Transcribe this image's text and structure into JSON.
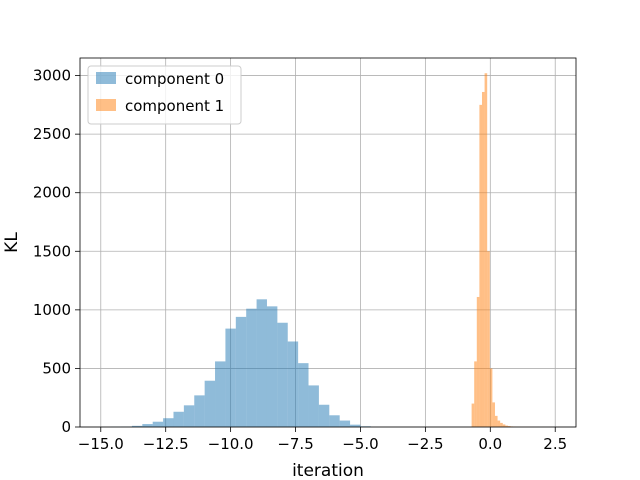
{
  "chart_data": {
    "type": "bar",
    "subtype": "histogram",
    "xlabel": "iteration",
    "ylabel": "KL",
    "xlim": [
      -15.8,
      3.3
    ],
    "ylim": [
      0,
      3150
    ],
    "xticks": [
      -15.0,
      -12.5,
      -10.0,
      -7.5,
      -5.0,
      -2.5,
      0.0,
      2.5
    ],
    "xtick_labels": [
      "−15.0",
      "−12.5",
      "−10.0",
      "−7.5",
      "−5.0",
      "−2.5",
      "0.0",
      "2.5"
    ],
    "yticks": [
      0,
      500,
      1000,
      1500,
      2000,
      2500,
      3000
    ],
    "ytick_labels": [
      "0",
      "500",
      "1000",
      "1500",
      "2000",
      "2500",
      "3000"
    ],
    "grid": true,
    "legend_position": "top-left",
    "series": [
      {
        "name": "component 0",
        "color": "#1f77b4",
        "alpha": 0.5,
        "bin_edges": [
          -14.6,
          -14.2,
          -13.8,
          -13.4,
          -13.0,
          -12.6,
          -12.2,
          -11.8,
          -11.4,
          -11.0,
          -10.6,
          -10.2,
          -9.8,
          -9.4,
          -9.0,
          -8.6,
          -8.2,
          -7.8,
          -7.4,
          -7.0,
          -6.6,
          -6.2,
          -5.8,
          -5.4,
          -5.0,
          -4.6
        ],
        "counts": [
          2,
          4,
          10,
          25,
          45,
          75,
          130,
          185,
          270,
          395,
          560,
          840,
          940,
          1010,
          1090,
          1030,
          890,
          730,
          545,
          355,
          190,
          100,
          55,
          20,
          6
        ]
      },
      {
        "name": "component 1",
        "color": "#ff7f0e",
        "alpha": 0.5,
        "bin_edges": [
          -0.72,
          -0.62,
          -0.52,
          -0.42,
          -0.32,
          -0.22,
          -0.12,
          -0.02,
          0.08,
          0.18,
          0.28,
          0.38,
          0.48,
          0.58,
          0.68,
          0.78,
          0.88,
          0.98,
          1.08,
          1.18,
          1.28,
          1.38,
          1.48,
          1.58,
          1.68,
          1.78,
          1.88,
          1.98,
          2.08,
          2.18,
          2.28,
          2.38,
          2.48,
          2.58,
          2.68
        ],
        "counts": [
          200,
          560,
          1110,
          2750,
          2860,
          3020,
          1500,
          500,
          210,
          95,
          55,
          35,
          22,
          12,
          8,
          5,
          3,
          2,
          2,
          1,
          1,
          1,
          1,
          1,
          0,
          1,
          0,
          1,
          0,
          0,
          1,
          0,
          0,
          1
        ]
      }
    ]
  }
}
